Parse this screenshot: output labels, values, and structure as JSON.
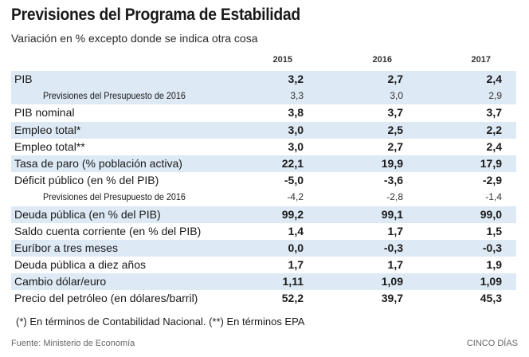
{
  "title": "Previsiones del Programa de Estabilidad",
  "subtitle": "Variación en % excepto donde se indica otra cosa",
  "years": [
    "2015",
    "2016",
    "2017"
  ],
  "rows": [
    {
      "label": "PIB",
      "v": [
        "3,2",
        "2,7",
        "2,4"
      ],
      "sub": false,
      "shaded": true
    },
    {
      "label": "Previsiones del Presupuesto de 2016",
      "v": [
        "3,3",
        "3,0",
        "2,9"
      ],
      "sub": true,
      "shaded": true
    },
    {
      "label": "PIB nominal",
      "v": [
        "3,8",
        "3,7",
        "3,7"
      ],
      "sub": false,
      "shaded": false
    },
    {
      "label": "Empleo total*",
      "v": [
        "3,0",
        "2,5",
        "2,2"
      ],
      "sub": false,
      "shaded": true
    },
    {
      "label": "Empleo total**",
      "v": [
        "3,0",
        "2,7",
        "2,4"
      ],
      "sub": false,
      "shaded": false
    },
    {
      "label": "Tasa de paro (% población activa)",
      "v": [
        "22,1",
        "19,9",
        "17,9"
      ],
      "sub": false,
      "shaded": true
    },
    {
      "label": "Déficit público (en % del PIB)",
      "v": [
        "-5,0",
        "-3,6",
        "-2,9"
      ],
      "sub": false,
      "shaded": false
    },
    {
      "label": "Previsiones del Presupuesto de 2016",
      "v": [
        "-4,2",
        "-2,8",
        "-1,4"
      ],
      "sub": true,
      "shaded": false
    },
    {
      "label": "Deuda pública (en % del PIB)",
      "v": [
        "99,2",
        "99,1",
        "99,0"
      ],
      "sub": false,
      "shaded": true
    },
    {
      "label": "Saldo cuenta corriente (en % del PIB)",
      "v": [
        "1,4",
        "1,7",
        "1,5"
      ],
      "sub": false,
      "shaded": false
    },
    {
      "label": "Euríbor a tres meses",
      "v": [
        "0,0",
        "-0,3",
        "-0,3"
      ],
      "sub": false,
      "shaded": true
    },
    {
      "label": "Deuda pública a diez años",
      "v": [
        "1,7",
        "1,7",
        "1,9"
      ],
      "sub": false,
      "shaded": false
    },
    {
      "label": "Cambio dólar/euro",
      "v": [
        "1,11",
        "1,09",
        "1,09"
      ],
      "sub": false,
      "shaded": true
    },
    {
      "label": "Precio del petróleo (en dólares/barril)",
      "v": [
        "52,2",
        "39,7",
        "45,3"
      ],
      "sub": false,
      "shaded": false
    }
  ],
  "footnote": "(*) En términos de Contabilidad Nacional. (**) En términos EPA",
  "source": "Fuente: Ministerio de Economía",
  "brand": "CINCO DÍAS"
}
